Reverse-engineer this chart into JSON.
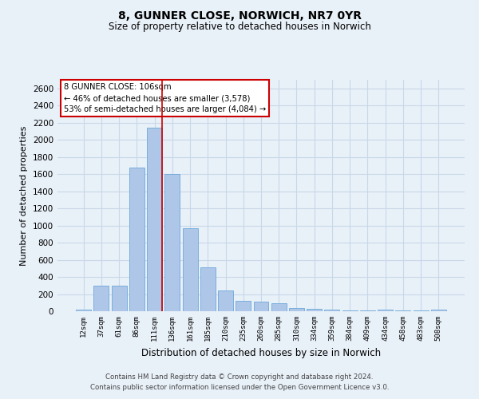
{
  "title": "8, GUNNER CLOSE, NORWICH, NR7 0YR",
  "subtitle": "Size of property relative to detached houses in Norwich",
  "xlabel": "Distribution of detached houses by size in Norwich",
  "ylabel": "Number of detached properties",
  "footer_line1": "Contains HM Land Registry data © Crown copyright and database right 2024.",
  "footer_line2": "Contains public sector information licensed under the Open Government Licence v3.0.",
  "annotation_line1": "8 GUNNER CLOSE: 106sqm",
  "annotation_line2": "← 46% of detached houses are smaller (3,578)",
  "annotation_line3": "53% of semi-detached houses are larger (4,084) →",
  "bar_color": "#aec6e8",
  "bar_edge_color": "#5a9fd4",
  "grid_color": "#c8d8e8",
  "redline_color": "#cc0000",
  "annotation_box_color": "#ffffff",
  "annotation_box_edge": "#cc0000",
  "background_color": "#e8f0f8",
  "categories": [
    "12sqm",
    "37sqm",
    "61sqm",
    "86sqm",
    "111sqm",
    "136sqm",
    "161sqm",
    "185sqm",
    "210sqm",
    "235sqm",
    "260sqm",
    "285sqm",
    "310sqm",
    "334sqm",
    "359sqm",
    "384sqm",
    "409sqm",
    "434sqm",
    "458sqm",
    "483sqm",
    "508sqm"
  ],
  "values": [
    20,
    300,
    300,
    1680,
    2140,
    1600,
    970,
    510,
    245,
    120,
    115,
    95,
    40,
    25,
    15,
    10,
    5,
    20,
    5,
    5,
    20
  ],
  "redline_index": 4,
  "ylim": [
    0,
    2700
  ],
  "yticks": [
    0,
    200,
    400,
    600,
    800,
    1000,
    1200,
    1400,
    1600,
    1800,
    2000,
    2200,
    2400,
    2600
  ]
}
